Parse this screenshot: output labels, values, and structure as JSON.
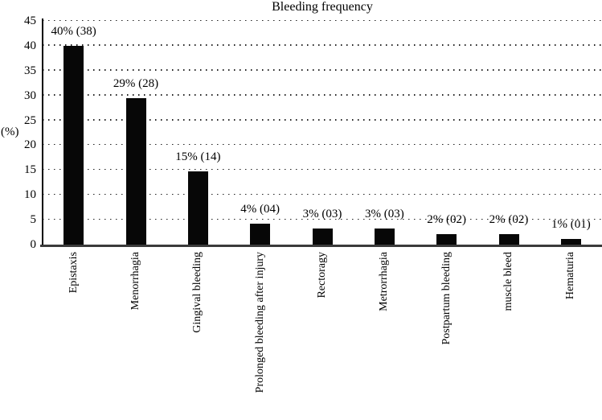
{
  "title": "Bleeding frequency",
  "y_axis": {
    "label": "(%)",
    "ticks": [
      45,
      40,
      35,
      30,
      25,
      20,
      15,
      10,
      5,
      0
    ],
    "max": 45
  },
  "chart_data": {
    "type": "bar",
    "title": "Bleeding frequency",
    "xlabel": "",
    "ylabel": "(%)",
    "ylim": [
      0,
      45
    ],
    "yticks": [
      0,
      5,
      10,
      15,
      20,
      25,
      30,
      35,
      40,
      45
    ],
    "grid": "horizontal dotted",
    "legend": "none",
    "bar_color": "#070707",
    "categories": [
      "Epistaxis",
      "Menorrhagia",
      "Gingival bleeding",
      "Prolonged bleeding after injury",
      "Rectoragy",
      "Metrorrhagia",
      "Postpartum bleeding",
      "muscle bleed",
      "Hematuria"
    ],
    "values": [
      40.0,
      29.5,
      14.7,
      4.2,
      3.2,
      3.2,
      2.1,
      2.1,
      1.1
    ],
    "counts": [
      38,
      28,
      14,
      4,
      3,
      3,
      2,
      2,
      1
    ],
    "bar_labels": [
      "40% (38)",
      "29% (28)",
      "15% (14)",
      "4% (04)",
      "3% (03)",
      "3% (03)",
      "2% (02)",
      "2% (02)",
      "1% (01)"
    ]
  }
}
